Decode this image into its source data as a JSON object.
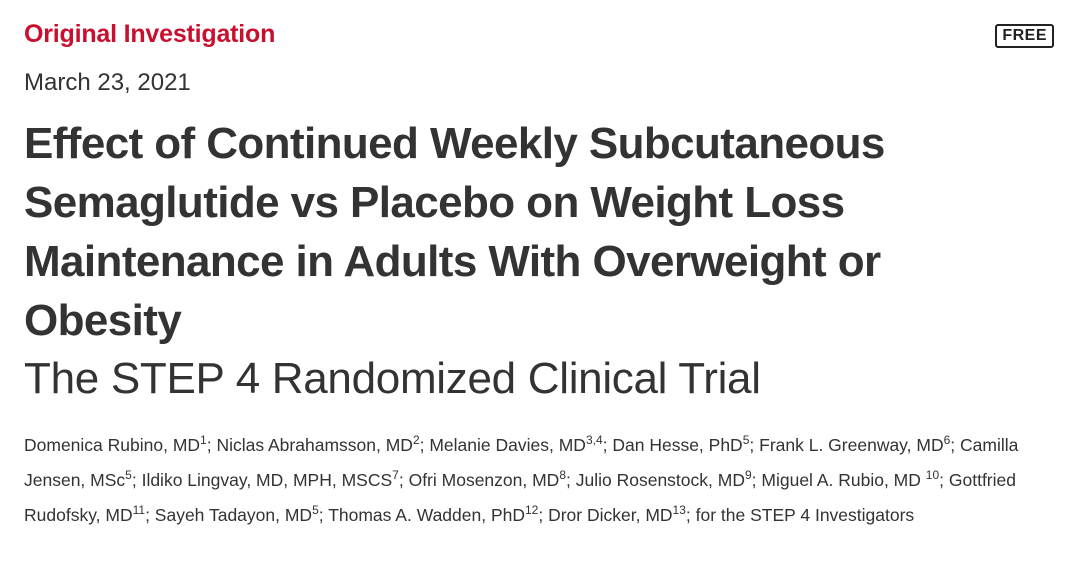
{
  "header": {
    "article_type": "Original Investigation",
    "access_badge": "FREE",
    "date": "March 23, 2021"
  },
  "article": {
    "title": "Effect of Continued Weekly Subcutaneous Semaglutide vs Placebo on Weight Loss Maintenance in Adults With Overweight or Obesity",
    "subtitle": "The STEP 4 Randomized Clinical Trial"
  },
  "authors": [
    {
      "name": "Domenica Rubino, MD",
      "aff": "1"
    },
    {
      "name": "Niclas Abrahamsson, MD",
      "aff": "2"
    },
    {
      "name": "Melanie Davies, MD",
      "aff": "3,4"
    },
    {
      "name": "Dan Hesse, PhD",
      "aff": "5"
    },
    {
      "name": "Frank L. Greenway, MD",
      "aff": "6"
    },
    {
      "name": "Camilla Jensen, MSc",
      "aff": "5"
    },
    {
      "name": "Ildiko Lingvay, MD, MPH, MSCS",
      "aff": "7"
    },
    {
      "name": "Ofri Mosenzon, MD",
      "aff": "8"
    },
    {
      "name": "Julio Rosenstock, MD",
      "aff": "9"
    },
    {
      "name": "Miguel A. Rubio, MD",
      "aff": "10"
    },
    {
      "name": "Gottfried Rudofsky, MD",
      "aff": "11"
    },
    {
      "name": "Sayeh Tadayon, MD",
      "aff": "5"
    },
    {
      "name": "Thomas A. Wadden, PhD",
      "aff": "12"
    },
    {
      "name": "Dror Dicker, MD",
      "aff": "13"
    }
  ],
  "group_author": "for the STEP 4 Investigators",
  "colors": {
    "article_type": "#c8102e",
    "text": "#333333"
  }
}
